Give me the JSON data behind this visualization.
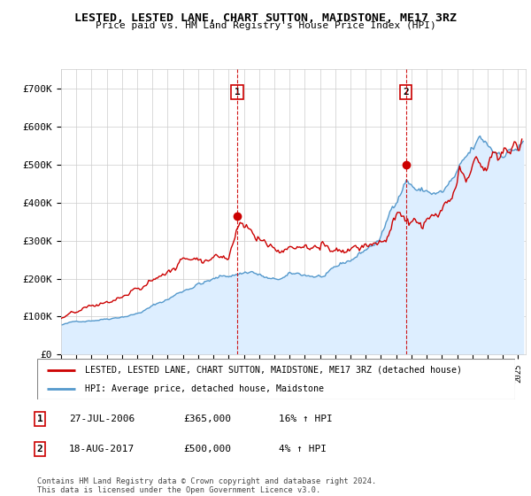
{
  "title": "LESTED, LESTED LANE, CHART SUTTON, MAIDSTONE, ME17 3RZ",
  "subtitle": "Price paid vs. HM Land Registry's House Price Index (HPI)",
  "legend_line1": "LESTED, LESTED LANE, CHART SUTTON, MAIDSTONE, ME17 3RZ (detached house)",
  "legend_line2": "HPI: Average price, detached house, Maidstone",
  "sale1_label": "1",
  "sale1_date": "27-JUL-2006",
  "sale1_price": "£365,000",
  "sale1_hpi": "16% ↑ HPI",
  "sale2_label": "2",
  "sale2_date": "18-AUG-2017",
  "sale2_price": "£500,000",
  "sale2_hpi": "4% ↑ HPI",
  "footnote": "Contains HM Land Registry data © Crown copyright and database right 2024.\nThis data is licensed under the Open Government Licence v3.0.",
  "red_color": "#cc0000",
  "blue_color": "#5599cc",
  "blue_fill": "#ddeeff",
  "ylim": [
    0,
    750000
  ],
  "yticks": [
    0,
    100000,
    200000,
    300000,
    400000,
    500000,
    600000,
    700000
  ],
  "sale1_x": 2006.555,
  "sale1_y": 365000,
  "sale2_x": 2017.635,
  "sale2_y": 500000,
  "xlim_left": 1995.0,
  "xlim_right": 2025.5
}
